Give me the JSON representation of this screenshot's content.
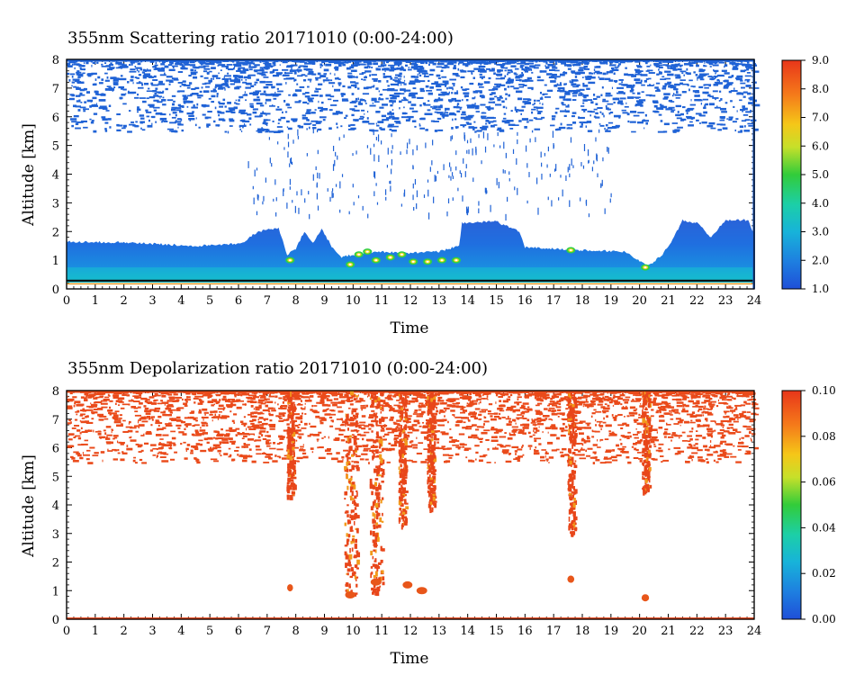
{
  "chart_data": [
    {
      "type": "heatmap",
      "title": "355nm Scattering ratio  20171010 (0:00-24:00)",
      "xlabel": "Time",
      "ylabel": "Altitude [km]",
      "xlim": [
        0,
        24
      ],
      "ylim": [
        0,
        8
      ],
      "x_ticks": [
        "0",
        "1",
        "2",
        "3",
        "4",
        "5",
        "6",
        "7",
        "8",
        "9",
        "10",
        "11",
        "12",
        "13",
        "14",
        "15",
        "16",
        "17",
        "18",
        "19",
        "20",
        "21",
        "22",
        "23",
        "24"
      ],
      "y_ticks": [
        "0",
        "1",
        "2",
        "3",
        "4",
        "5",
        "6",
        "7",
        "8"
      ],
      "colorbar": {
        "min": 1.0,
        "max": 9.0,
        "ticks": [
          "1.0",
          "2.0",
          "3.0",
          "4.0",
          "5.0",
          "6.0",
          "7.0",
          "8.0",
          "9.0"
        ]
      },
      "boundary_layer_top_km": [
        [
          0,
          1.65
        ],
        [
          2,
          1.62
        ],
        [
          4.5,
          1.5
        ],
        [
          6.2,
          1.6
        ],
        [
          6.5,
          1.9
        ],
        [
          7,
          2.1
        ],
        [
          7.4,
          2.1
        ],
        [
          7.7,
          1.2
        ],
        [
          8,
          1.4
        ],
        [
          8.3,
          2.0
        ],
        [
          8.6,
          1.6
        ],
        [
          8.9,
          2.1
        ],
        [
          9.3,
          1.4
        ],
        [
          9.6,
          1.1
        ],
        [
          10,
          1.2
        ],
        [
          11,
          1.3
        ],
        [
          12,
          1.25
        ],
        [
          13,
          1.3
        ],
        [
          13.7,
          1.5
        ],
        [
          13.8,
          2.3
        ],
        [
          15,
          2.35
        ],
        [
          15.8,
          2.0
        ],
        [
          16,
          1.45
        ],
        [
          17,
          1.4
        ],
        [
          18,
          1.35
        ],
        [
          19.5,
          1.3
        ],
        [
          20.3,
          0.8
        ],
        [
          20.8,
          1.2
        ],
        [
          21.2,
          1.8
        ],
        [
          21.5,
          2.4
        ],
        [
          22,
          2.3
        ],
        [
          22.5,
          1.8
        ],
        [
          23,
          2.4
        ],
        [
          23.8,
          2.4
        ],
        [
          24,
          1.9
        ]
      ],
      "high_signal_spots": [
        {
          "time": 7.8,
          "alt": 1.0
        },
        {
          "time": 9.9,
          "alt": 0.85
        },
        {
          "time": 10.2,
          "alt": 1.2
        },
        {
          "time": 10.5,
          "alt": 1.3
        },
        {
          "time": 10.8,
          "alt": 1.0
        },
        {
          "time": 11.3,
          "alt": 1.1
        },
        {
          "time": 11.7,
          "alt": 1.2
        },
        {
          "time": 12.1,
          "alt": 0.95
        },
        {
          "time": 12.6,
          "alt": 0.95
        },
        {
          "time": 13.1,
          "alt": 1.0
        },
        {
          "time": 13.6,
          "alt": 1.0
        },
        {
          "time": 17.6,
          "alt": 1.35
        },
        {
          "time": 20.2,
          "alt": 0.75
        }
      ],
      "upper_scatter_band_km": [
        5.5,
        8.0
      ]
    },
    {
      "type": "heatmap",
      "title": "355nm Depolarization ratio  20171010 (0:00-24:00)",
      "xlabel": "Time",
      "ylabel": "Altitude [km]",
      "xlim": [
        0,
        24
      ],
      "ylim": [
        0,
        8
      ],
      "x_ticks": [
        "0",
        "1",
        "2",
        "3",
        "4",
        "5",
        "6",
        "7",
        "8",
        "9",
        "10",
        "11",
        "12",
        "13",
        "14",
        "15",
        "16",
        "17",
        "18",
        "19",
        "20",
        "21",
        "22",
        "23",
        "24"
      ],
      "y_ticks": [
        "0",
        "1",
        "2",
        "3",
        "4",
        "5",
        "6",
        "7",
        "8"
      ],
      "colorbar": {
        "min": 0.0,
        "max": 0.1,
        "ticks": [
          "0.00",
          "0.02",
          "0.04",
          "0.06",
          "0.08",
          "0.10"
        ]
      },
      "precipitation_streaks": [
        {
          "time": 7.8,
          "bottom_km": 4.3
        },
        {
          "time": 9.9,
          "bottom_km": 0.7
        },
        {
          "time": 10.8,
          "bottom_km": 0.9
        },
        {
          "time": 11.7,
          "bottom_km": 3.3
        },
        {
          "time": 12.7,
          "bottom_km": 3.8
        },
        {
          "time": 17.6,
          "bottom_km": 3.0
        },
        {
          "time": 20.2,
          "bottom_km": 4.5
        }
      ],
      "low_spots": [
        {
          "time": 7.8,
          "alt": 1.1
        },
        {
          "time": 9.9,
          "alt": 0.85
        },
        {
          "time": 10.8,
          "alt": 1.3
        },
        {
          "time": 11.9,
          "alt": 1.2
        },
        {
          "time": 12.4,
          "alt": 1.0
        },
        {
          "time": 17.6,
          "alt": 1.4
        },
        {
          "time": 20.2,
          "alt": 0.75
        }
      ],
      "upper_scatter_band_km": [
        5.5,
        8.0
      ]
    }
  ]
}
